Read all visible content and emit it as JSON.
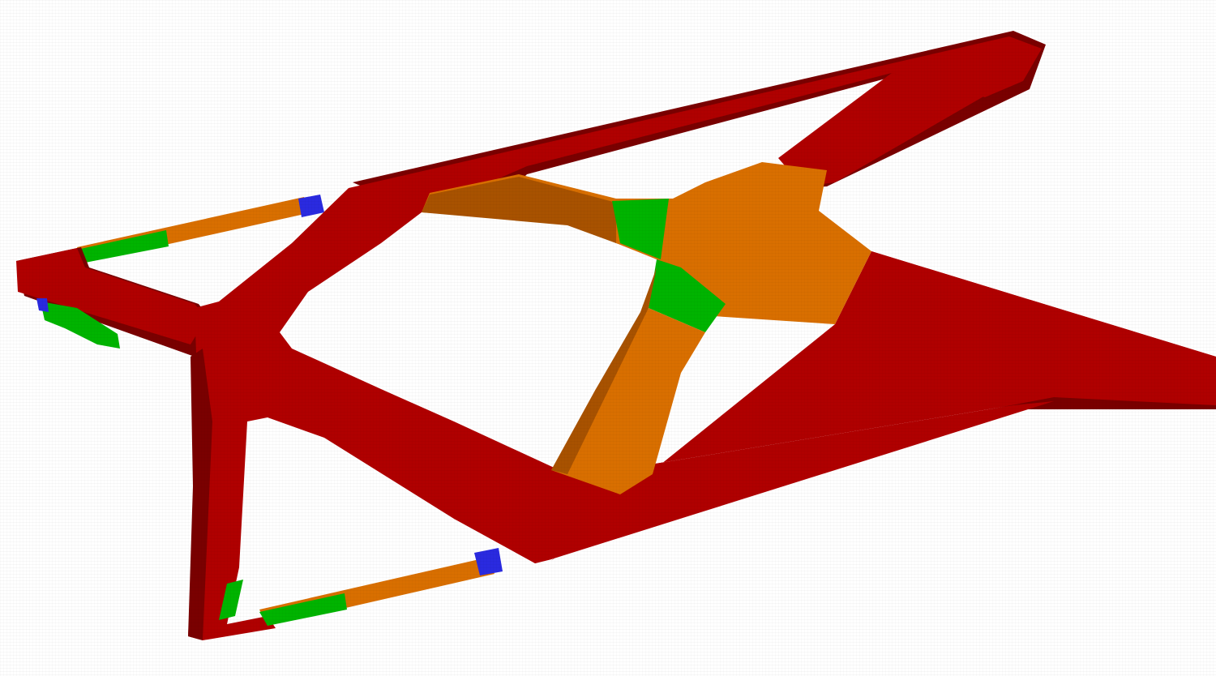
{
  "scene": {
    "background": "#ffffff",
    "materials": {
      "red": "#b00000",
      "dark_red": "#7a0000",
      "orange": "#d96f00",
      "dark_orange": "#a85200",
      "green": "#00b400",
      "dark_green": "#008000",
      "blue": "#2a2ae0"
    }
  }
}
